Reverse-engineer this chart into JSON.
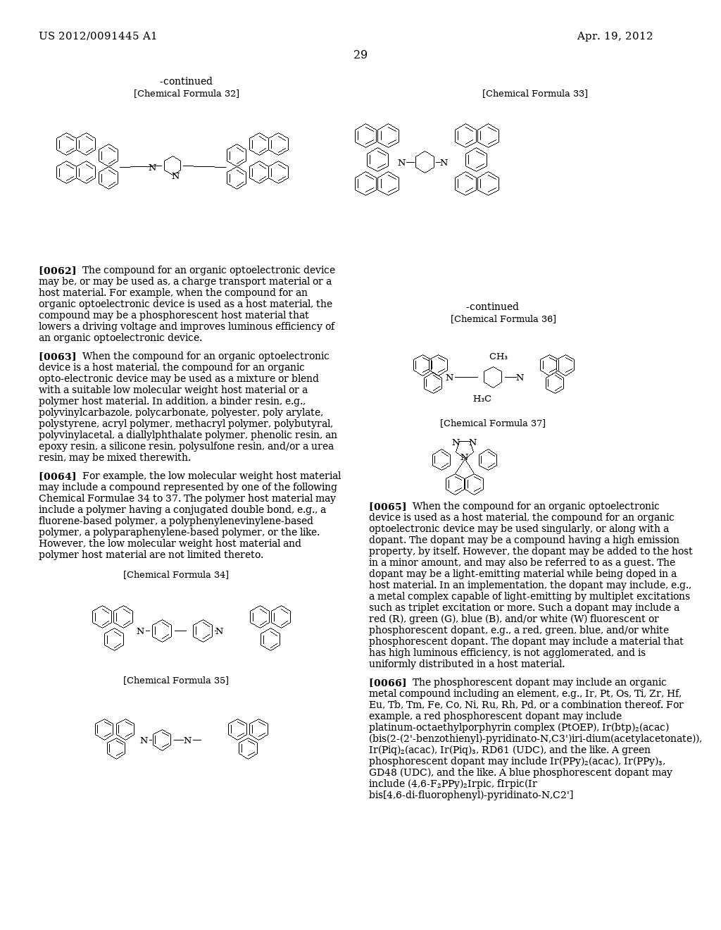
{
  "page_number": "29",
  "patent_number": "US 2012/0091445 A1",
  "patent_date": "Apr. 19, 2012",
  "continued_label": "-continued",
  "cf32_label": "[Chemical Formula 32]",
  "cf33_label": "[Chemical Formula 33]",
  "cf36_label": "[Chemical Formula 36]",
  "cf37_label": "[Chemical Formula 37]",
  "cf34_label": "[Chemical Formula 34]",
  "cf35_label": "[Chemical Formula 35]",
  "continued2_label": "-continued",
  "background_color": "#ffffff",
  "text_color": "#000000",
  "paragraph_0062": "[0062]    The compound for an organic optoelectronic device may be, or may be used as, a charge transport material or a host material.  For example, when the compound for an organic optoelectronic device is used as a host material, the compound may be a phosphorescent host material that lowers a driving voltage and improves luminous efficiency of an organic optoelectronic device.",
  "paragraph_0063": "[0063]    When the compound for an organic optoelectronic device is a host material, the compound for an organic opto-electronic device may be used as a mixture or blend with a suitable low molecular weight host material or a polymer host material.  In addition, a binder resin, e.g., polyvinylcarbazole, polycarbonate, polyester, poly arylate, polystyrene, acryl polymer, methacryl polymer, polybutyral, polyvinylacetal, a diallylphthalate polymer, phenolic resin, an epoxy resin, a silicone resin, polysulfone resin, and/or a urea resin, may be mixed therewith.",
  "paragraph_0064": "[0064]    For example, the low molecular weight host material may include a compound represented by one of the following Chemical Formulae 34 to 37. The polymer host material may include a polymer having a conjugated double bond, e.g., a fluorene-based polymer, a polyphenylenevinylene-based polymer, a polyparaphenylene-based polymer, or the like. However, the low molecular weight host material and polymer host material are not limited thereto.",
  "paragraph_0065": "[0065]    When the compound for an organic optoelectronic device is used as a host material, the compound for an organic optoelectronic device may be used singularly, or along with a dopant. The dopant may be a compound having a high emission property, by itself. However, the dopant may be added to the host in a minor amount, and may also be referred to as a guest. The dopant may be a light-emitting material while being doped in a host material. In an implementation, the dopant may include, e.g., a metal complex capable of light-emitting by multiplet excitations such as triplet excitation or more. Such a dopant may include a red (R), green (G), blue (B), and/or white (W) fluorescent or phosphorescent dopant, e.g., a red, green, blue, and/or white phosphorescent dopant. The dopant may include a material that has high luminous efficiency, is not agglomerated, and is uniformly distributed in a host material.",
  "paragraph_0066": "[0066]    The phosphorescent dopant may include an organic metal compound including an element, e.g., Ir, Pt, Os, Ti, Zr, Hf, Eu, Tb, Tm, Fe, Co, Ni, Ru, Rh, Pd, or a combination thereof. For example, a red phosphorescent dopant may include  platinum-octaethylporphyrin complex (PtOEP), Ir(btp)₂(acac) (bis(2-(2'-benzothienyl)-pyridinato-N,C3')iri-dium(acetylacetonate)),  Ir(Piq)₂(acac),  Ir(Piq)₃,  RD61 (UDC), and the like. A green phosphorescent dopant may include Ir(PPy)₂(acac), Ir(PPy)₃, GD48 (UDC), and the like. A blue phosphorescent dopant may include (4,6-F₂PPy)₂Irpic, fIrpic(Ir  bis[4,6-di-fluorophenyl)-pyridinato-N,C2']"
}
